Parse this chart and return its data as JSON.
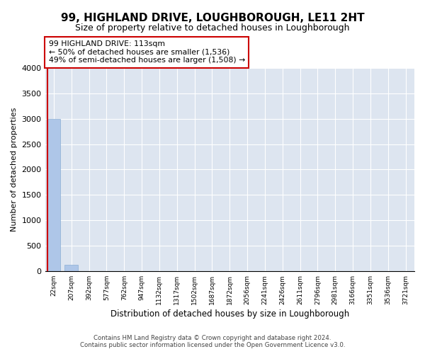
{
  "title": "99, HIGHLAND DRIVE, LOUGHBOROUGH, LE11 2HT",
  "subtitle": "Size of property relative to detached houses in Loughborough",
  "xlabel": "Distribution of detached houses by size in Loughborough",
  "ylabel": "Number of detached properties",
  "bar_color": "#aec6e8",
  "bar_edge_color": "#8aadd4",
  "highlight_color": "#cc0000",
  "bg_color": "#dde5f0",
  "categories": [
    "22sqm",
    "207sqm",
    "392sqm",
    "577sqm",
    "762sqm",
    "947sqm",
    "1132sqm",
    "1317sqm",
    "1502sqm",
    "1687sqm",
    "1872sqm",
    "2056sqm",
    "2241sqm",
    "2426sqm",
    "2611sqm",
    "2796sqm",
    "2981sqm",
    "3166sqm",
    "3351sqm",
    "3536sqm",
    "3721sqm"
  ],
  "values": [
    2990,
    120,
    0,
    0,
    0,
    0,
    0,
    0,
    0,
    0,
    0,
    0,
    0,
    0,
    0,
    0,
    0,
    0,
    0,
    0,
    0
  ],
  "annotation_line1": "99 HIGHLAND DRIVE: 113sqm",
  "annotation_line2": "← 50% of detached houses are smaller (1,536)",
  "annotation_line3": "49% of semi-detached houses are larger (1,508) →",
  "ylim_max": 4000,
  "yticks": [
    0,
    500,
    1000,
    1500,
    2000,
    2500,
    3000,
    3500,
    4000
  ],
  "footnote1": "Contains HM Land Registry data © Crown copyright and database right 2024.",
  "footnote2": "Contains public sector information licensed under the Open Government Licence v3.0."
}
